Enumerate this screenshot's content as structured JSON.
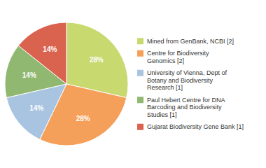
{
  "chart_data": {
    "type": "pie",
    "categories": [
      "Mined from GenBank, NCBI [2]",
      "Centre for Biodiversity\nGenomics [2]",
      "University of Vienna, Dept of\nBotany and Biodiversity\nResearch [1]",
      "Paul Hebert Centre for DNA\nBarcoding and Biodiversity\nStudies [1]",
      "Gujarat Biodiversity Gene Bank [1]"
    ],
    "values": [
      28,
      28,
      14,
      14,
      14
    ],
    "value_labels": [
      "28%",
      "28%",
      "14%",
      "14%",
      "14%"
    ],
    "colors": [
      "#c8d96f",
      "#f5a05a",
      "#a8c4e0",
      "#90b870",
      "#d9634e"
    ],
    "data_labels": true,
    "legend": "right"
  }
}
